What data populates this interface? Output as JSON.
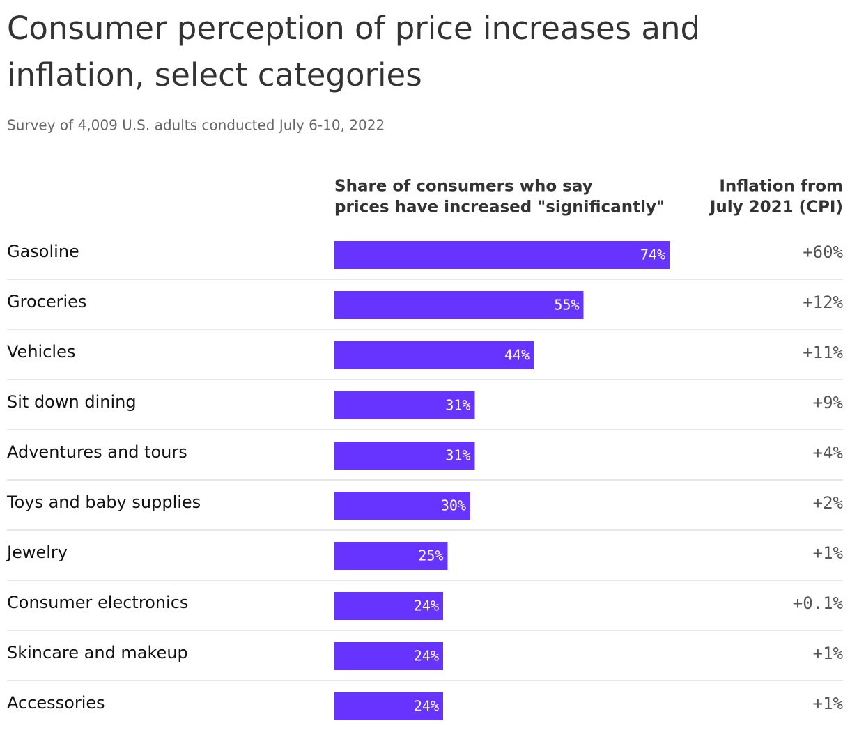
{
  "chart_data": {
    "type": "bar",
    "title_lines": [
      "Consumer perception of price increases and",
      "inflation, select categories"
    ],
    "subtitle": "Survey of 4,009 U.S. adults conducted July 6-10, 2022",
    "column_headers": [
      [
        "Share of consumers who say",
        "prices have increased \"significantly\""
      ],
      [
        "Inflation from",
        "July 2021 (CPI)"
      ]
    ],
    "categories": [
      "Gasoline",
      "Groceries",
      "Vehicles",
      "Sit down dining",
      "Adventures and tours",
      "Toys and baby supplies",
      "Jewelry",
      "Consumer electronics",
      "Skincare and makeup",
      "Accessories"
    ],
    "values": [
      74,
      55,
      44,
      31,
      31,
      30,
      25,
      24,
      24,
      24
    ],
    "value_labels": [
      "74%",
      "55%",
      "44%",
      "31%",
      "31%",
      "30%",
      "25%",
      "24%",
      "24%",
      "24%"
    ],
    "color": "#6633ff",
    "xlim": [
      0,
      100
    ],
    "inflation": {
      "values": [
        60,
        12,
        11,
        9,
        4,
        2,
        1,
        0.1,
        1,
        1
      ],
      "value_labels": [
        "+60%",
        "+12%",
        "+11%",
        "+9%",
        "+4%",
        "+2%",
        "+1%",
        "+0.1%",
        "+1%",
        "+1%"
      ]
    }
  }
}
